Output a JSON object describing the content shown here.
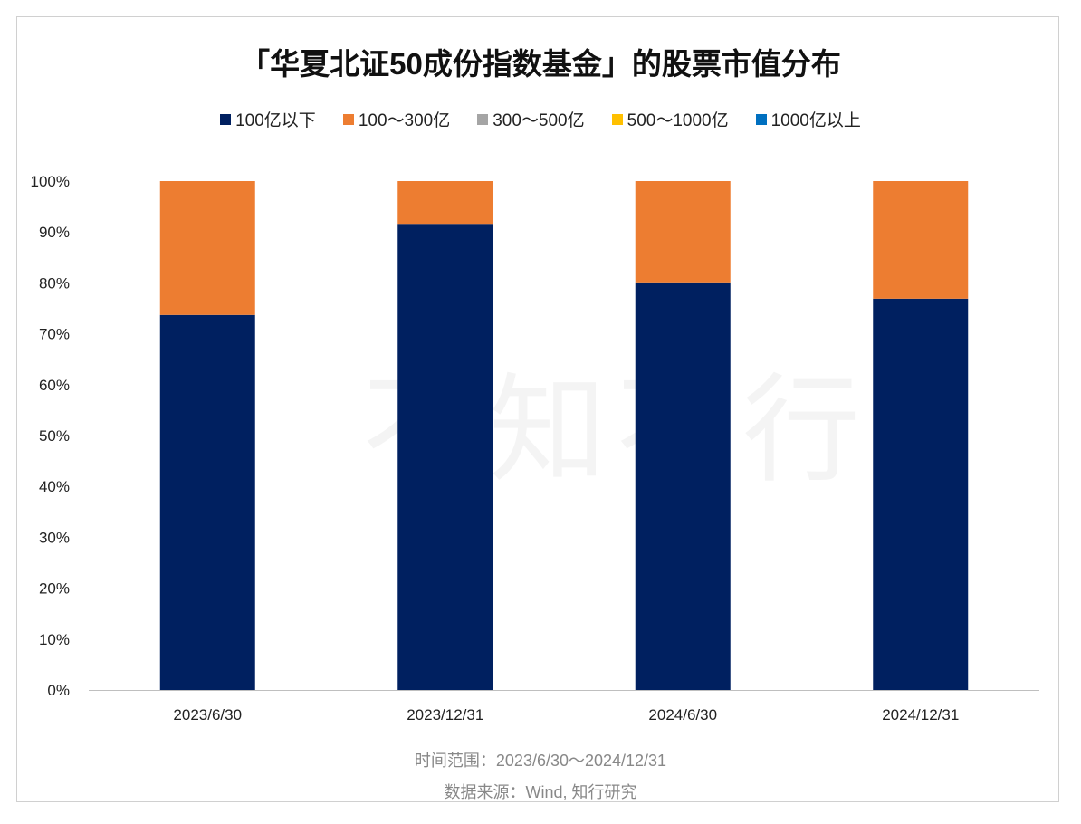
{
  "chart_data": {
    "type": "bar",
    "stacked": true,
    "title": "「华夏北证50成份指数基金」的股票市值分布",
    "categories": [
      "2023/6/30",
      "2023/12/31",
      "2024/6/30",
      "2024/12/31"
    ],
    "series": [
      {
        "name": "100亿以下",
        "color": "#002060",
        "values": [
          73.7,
          91.6,
          80.1,
          76.9
        ]
      },
      {
        "name": "100～300亿",
        "color": "#ED7D31",
        "values": [
          26.3,
          8.4,
          19.9,
          23.1
        ]
      },
      {
        "name": "300～500亿",
        "color": "#A5A5A5",
        "values": [
          0,
          0,
          0,
          0
        ]
      },
      {
        "name": "500～1000亿",
        "color": "#FFC000",
        "values": [
          0,
          0,
          0,
          0
        ]
      },
      {
        "name": "1000亿以上",
        "color": "#0070C0",
        "values": [
          0,
          0,
          0,
          0
        ]
      }
    ],
    "ylim": [
      0,
      100
    ],
    "yticks": [
      "0%",
      "10%",
      "20%",
      "30%",
      "40%",
      "50%",
      "60%",
      "70%",
      "80%",
      "90%",
      "100%"
    ],
    "legend_position": "top",
    "grid": false,
    "xlabel": "",
    "ylabel": ""
  },
  "footer": {
    "range": "时间范围：2023/6/30～2024/12/31",
    "source": "数据来源：Wind, 知行研究"
  },
  "watermark": "知行"
}
